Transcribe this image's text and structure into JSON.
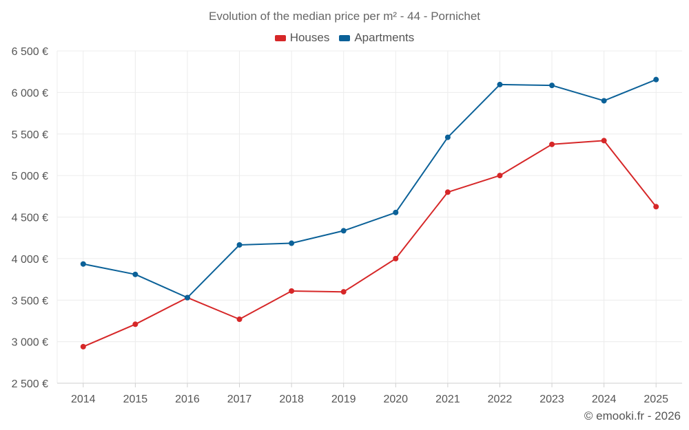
{
  "chart_data": {
    "type": "line",
    "title": "Evolution of the median price per m² - 44 - Pornichet",
    "categories": [
      "2014",
      "2015",
      "2016",
      "2017",
      "2018",
      "2019",
      "2020",
      "2021",
      "2022",
      "2023",
      "2024",
      "2025"
    ],
    "series": [
      {
        "name": "Houses",
        "color": "#d62728",
        "values": [
          2940,
          3210,
          3530,
          3270,
          3610,
          3600,
          4000,
          4800,
          5000,
          5375,
          5420,
          4625
        ]
      },
      {
        "name": "Apartments",
        "color": "#0b6198",
        "values": [
          3935,
          3810,
          3530,
          4165,
          4185,
          4335,
          4555,
          5460,
          6095,
          6085,
          5900,
          6155
        ]
      }
    ],
    "y_ticks": [
      2500,
      3000,
      3500,
      4000,
      4500,
      5000,
      5500,
      6000,
      6500
    ],
    "y_tick_labels": [
      "2 500 €",
      "3 000 €",
      "3 500 €",
      "4 000 €",
      "4 500 €",
      "5 000 €",
      "5 500 €",
      "6 000 €",
      "6 500 €"
    ],
    "ylim": [
      2500,
      6500
    ],
    "xlabel": "",
    "ylabel": "",
    "grid": true,
    "legend_position": "top-center"
  },
  "legend": {
    "houses": "Houses",
    "apartments": "Apartments"
  },
  "credit": "© emooki.fr - 2026"
}
